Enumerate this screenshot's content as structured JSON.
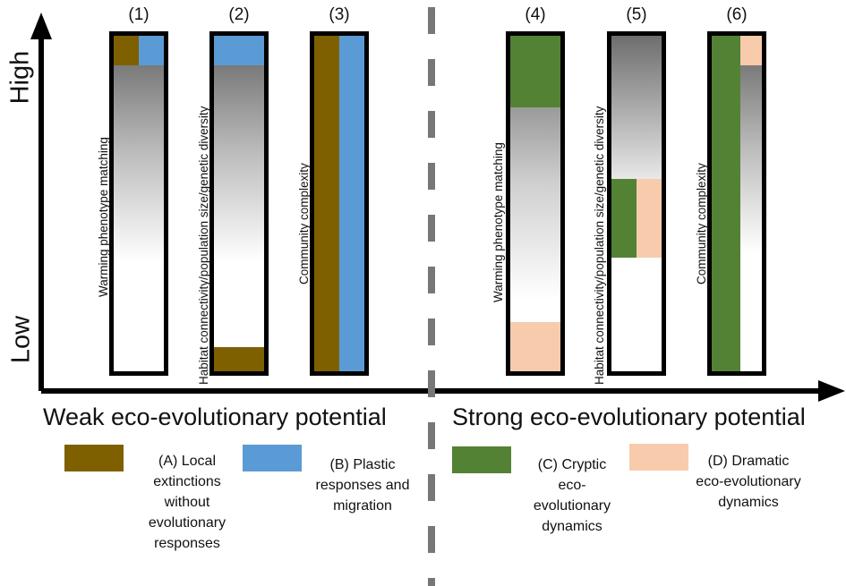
{
  "axis": {
    "high_label": "High",
    "low_label": "Low"
  },
  "columns": [
    {
      "number": "(1)",
      "label": "Warming phenotype matching"
    },
    {
      "number": "(2)",
      "label": "Habitat connectivity/population size/genetic diversity"
    },
    {
      "number": "(3)",
      "label": "Community complexity"
    },
    {
      "number": "(4)",
      "label": "Warming phenotype matching"
    },
    {
      "number": "(5)",
      "label": "Habitat connectivity/population size/genetic diversity"
    },
    {
      "number": "(6)",
      "label": "Community complexity"
    }
  ],
  "potential": {
    "weak": "Weak eco-evolutionary potential",
    "strong": "Strong eco-evolutionary potential"
  },
  "legend": [
    {
      "text": "(A) Local extinctions without evolutionary responses",
      "color": "#7f6000"
    },
    {
      "text": "(B) Plastic responses and migration",
      "color": "#5b9bd5"
    },
    {
      "text": "(C) Cryptic eco-evolutionary dynamics",
      "color": "#548235"
    },
    {
      "text": "(D) Dramatic eco-evolutionary dynamics",
      "color": "#f8cbad"
    }
  ],
  "colors": {
    "A": "#7f6000",
    "B": "#5b9bd5",
    "C": "#548235",
    "D": "#f8cbad",
    "gradient_dark": "#7a7a7a",
    "axis": "#000000",
    "divider": "#777777"
  }
}
